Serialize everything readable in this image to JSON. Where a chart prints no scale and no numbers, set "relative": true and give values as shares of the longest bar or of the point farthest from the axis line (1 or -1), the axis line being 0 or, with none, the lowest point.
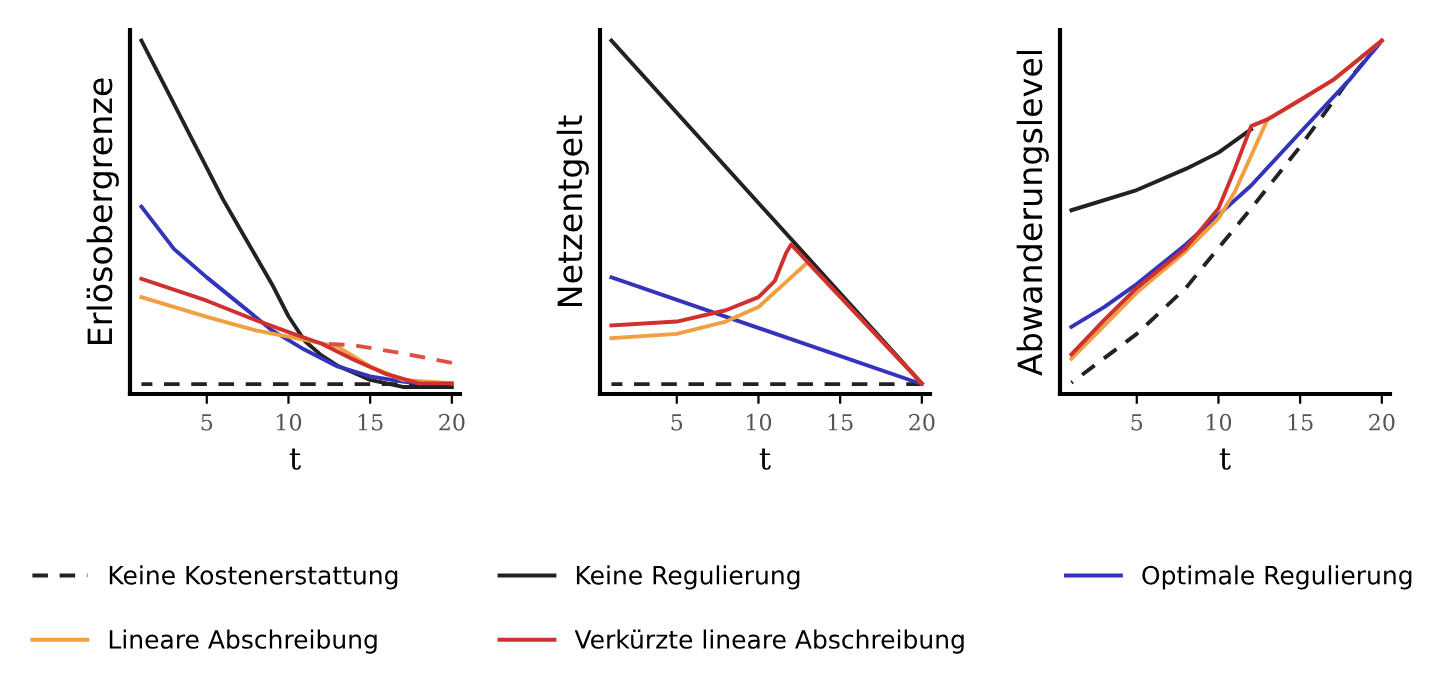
{
  "chart_data": [
    {
      "type": "line",
      "xlabel": "t",
      "ylabel": "Erlösobergrenze",
      "relative": true,
      "xlim": [
        0.3,
        20.5
      ],
      "xticks": [
        5,
        10,
        15,
        20
      ],
      "grid": false,
      "legend": "bottom",
      "marker": "none",
      "series": [
        {
          "name": "Keine Kostenerstattung",
          "color": "#222222",
          "line_style": "dashed",
          "x": [
            1,
            20
          ],
          "values": [
            0.028,
            0.028
          ]
        },
        {
          "name": "Keine Regulierung",
          "color": "#222222",
          "x": [
            1,
            2,
            3,
            4,
            5,
            6,
            7,
            8,
            9,
            10,
            11,
            12,
            13,
            14,
            15,
            16,
            17,
            20
          ],
          "values": [
            1.0,
            0.91,
            0.82,
            0.73,
            0.64,
            0.55,
            0.47,
            0.39,
            0.31,
            0.22,
            0.15,
            0.11,
            0.08,
            0.06,
            0.04,
            0.03,
            0.02,
            0.02
          ]
        },
        {
          "name": "Optimale Regulierung",
          "color": "#3333bb",
          "x": [
            1,
            3,
            5,
            7,
            9,
            11,
            13,
            15,
            17,
            18
          ],
          "values": [
            0.53,
            0.41,
            0.33,
            0.255,
            0.18,
            0.125,
            0.078,
            0.05,
            0.035,
            0.03
          ]
        },
        {
          "name": "Lineare Abschreibung",
          "color": "#f0a040",
          "x": [
            1,
            5,
            8,
            11,
            13,
            15,
            17,
            20
          ],
          "values": [
            0.274,
            0.218,
            0.18,
            0.153,
            0.134,
            0.078,
            0.04,
            0.03
          ]
        },
        {
          "name": "Verkürzte lineare Abschreibung",
          "color": "#d03030",
          "x": [
            1,
            5,
            8,
            10,
            12,
            14,
            16,
            18,
            20
          ],
          "values": [
            0.326,
            0.264,
            0.209,
            0.175,
            0.143,
            0.097,
            0.056,
            0.03,
            0.03
          ]
        },
        {
          "color": "#e05040",
          "line_style": "dashed",
          "x": [
            12,
            14,
            17,
            20
          ],
          "values": [
            0.143,
            0.138,
            0.115,
            0.088
          ]
        }
      ]
    },
    {
      "type": "line",
      "xlabel": "t",
      "ylabel": "Netzentgelt",
      "relative": true,
      "xlim": [
        0.3,
        20.5
      ],
      "xticks": [
        5,
        10,
        15,
        20
      ],
      "grid": false,
      "marker": "none",
      "series": [
        {
          "color": "#222222",
          "line_style": "dashed",
          "x": [
            1,
            20
          ],
          "values": [
            0.028,
            0.028
          ]
        },
        {
          "color": "#222222",
          "x": [
            1,
            20
          ],
          "values": [
            1.0,
            0.03
          ]
        },
        {
          "color": "#3333bb",
          "x": [
            1,
            20
          ],
          "values": [
            0.33,
            0.028
          ]
        },
        {
          "color": "#f0a040",
          "x": [
            1,
            5,
            8,
            10,
            12,
            13,
            20
          ],
          "values": [
            0.158,
            0.17,
            0.205,
            0.246,
            0.33,
            0.372,
            0.03
          ]
        },
        {
          "color": "#d03030",
          "x": [
            1,
            5,
            8,
            10,
            11,
            11.7,
            12,
            20
          ],
          "values": [
            0.194,
            0.205,
            0.237,
            0.274,
            0.32,
            0.4,
            0.423,
            0.03
          ]
        }
      ]
    },
    {
      "type": "line",
      "xlabel": "t",
      "ylabel": "Abwanderungslevel",
      "relative": true,
      "xlim": [
        0.3,
        20.5
      ],
      "xticks": [
        5,
        10,
        15,
        20
      ],
      "grid": false,
      "marker": "none",
      "series": [
        {
          "color": "#222222",
          "line_style": "dashed",
          "x": [
            1,
            5,
            8,
            10,
            12,
            15,
            18,
            20
          ],
          "values": [
            0.032,
            0.17,
            0.3,
            0.413,
            0.525,
            0.7,
            0.89,
            1.0
          ]
        },
        {
          "color": "#222222",
          "x": [
            1,
            5,
            8,
            10,
            12
          ],
          "values": [
            0.52,
            0.577,
            0.637,
            0.683,
            0.749
          ]
        },
        {
          "color": "#3333bb",
          "x": [
            1,
            3,
            5,
            8,
            10,
            12,
            15,
            18,
            20
          ],
          "values": [
            0.19,
            0.246,
            0.311,
            0.423,
            0.507,
            0.59,
            0.74,
            0.888,
            1.0
          ]
        },
        {
          "color": "#f0a040",
          "x": [
            1,
            5,
            8,
            10,
            11,
            12,
            13,
            15,
            17,
            20
          ],
          "values": [
            0.1,
            0.287,
            0.404,
            0.497,
            0.572,
            0.674,
            0.777,
            0.832,
            0.888,
            1.0
          ]
        },
        {
          "color": "#d03030",
          "x": [
            1,
            3,
            5,
            8,
            10,
            11,
            12,
            13,
            15,
            17,
            20
          ],
          "values": [
            0.112,
            0.209,
            0.3,
            0.413,
            0.525,
            0.637,
            0.758,
            0.777,
            0.832,
            0.888,
            1.0
          ]
        }
      ]
    }
  ]
}
